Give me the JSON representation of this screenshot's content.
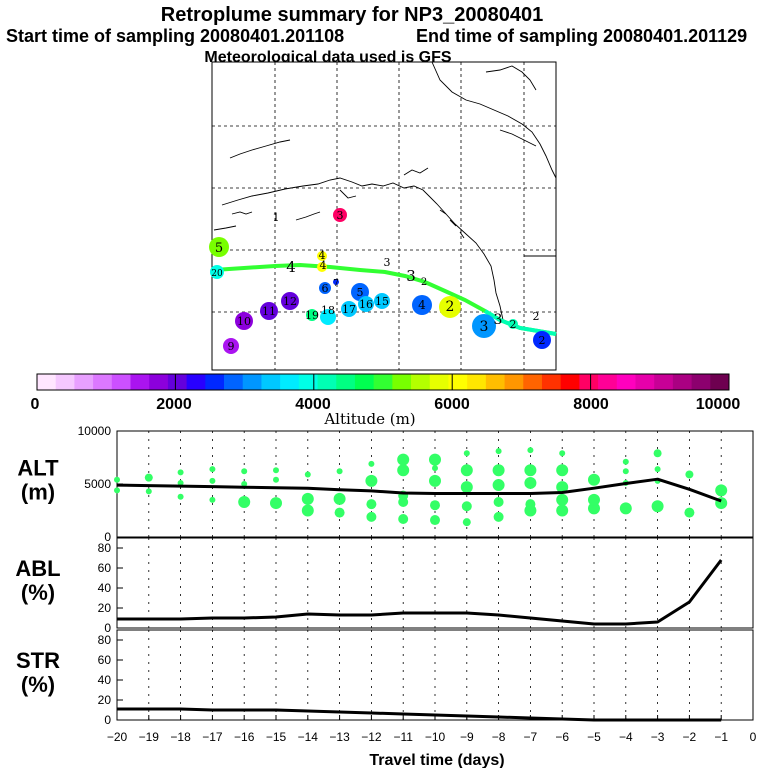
{
  "header": {
    "title": "Retroplume summary for NP3_20080401",
    "start_label": "Start time of sampling 20080401.201108",
    "end_label": "End time of sampling 20080401.201129",
    "met_label": "Meteorological data used is GFS"
  },
  "colorbar": {
    "ticks": [
      "0",
      "2000",
      "4000",
      "6000",
      "8000",
      "10000"
    ],
    "tick_values": [
      0,
      2000,
      4000,
      6000,
      8000,
      10000
    ],
    "range": [
      0,
      10000
    ],
    "label": "Altitude (m)",
    "colors": [
      "#ffe6ff",
      "#f5c8ff",
      "#e8a0ff",
      "#dc78ff",
      "#cc50ff",
      "#aa14f0",
      "#8c00dc",
      "#6400dc",
      "#2800ff",
      "#0028ff",
      "#0064ff",
      "#0096ff",
      "#00c8ff",
      "#00ebff",
      "#00ffe6",
      "#00ffb4",
      "#00ff82",
      "#00ff50",
      "#32ff32",
      "#78ff00",
      "#b4ff00",
      "#e6ff00",
      "#ffff00",
      "#ffe600",
      "#ffbe00",
      "#ff9600",
      "#ff6400",
      "#ff3200",
      "#ff0000",
      "#ff0064",
      "#ff0096",
      "#ff00be",
      "#e600aa",
      "#c80096",
      "#aa0082",
      "#8c006e",
      "#6e0050"
    ]
  },
  "chart_data": [
    {
      "type": "line",
      "panel": "ALT",
      "ylabel": "ALT\n(m)",
      "ylabel_line1": "ALT",
      "ylabel_line2": "(m)",
      "ylim": [
        0,
        10000
      ],
      "yticks": [
        "10000",
        "5000",
        "0"
      ],
      "ytick_values": [
        10000,
        5000,
        0
      ],
      "x": [
        -20,
        -19,
        -18,
        -17,
        -16,
        -15,
        -14,
        -13,
        -12,
        -11,
        -10,
        -9,
        -8,
        -7,
        -6,
        -5,
        -4,
        -3,
        -2,
        -1
      ],
      "series": [
        {
          "name": "mean altitude",
          "values": [
            4900,
            4850,
            4800,
            4750,
            4700,
            4650,
            4600,
            4450,
            4350,
            4150,
            4100,
            4100,
            4100,
            4100,
            4200,
            4600,
            5050,
            5450,
            4500,
            3400
          ]
        }
      ],
      "scatter_points": [
        {
          "x": -20,
          "y": [
            4400,
            5400
          ]
        },
        {
          "x": -19,
          "y": [
            4300,
            5600
          ]
        },
        {
          "x": -18,
          "y": [
            3800,
            5100,
            6100
          ]
        },
        {
          "x": -17,
          "y": [
            3500,
            5300,
            6400
          ]
        },
        {
          "x": -16,
          "y": [
            3300,
            5000,
            6200
          ]
        },
        {
          "x": -15,
          "y": [
            3200,
            5400,
            6300
          ]
        },
        {
          "x": -14,
          "y": [
            2500,
            3600,
            5900
          ]
        },
        {
          "x": -13,
          "y": [
            2300,
            3600,
            6200
          ]
        },
        {
          "x": -12,
          "y": [
            1900,
            3100,
            5300,
            6900
          ]
        },
        {
          "x": -11,
          "y": [
            1700,
            3300,
            3900,
            6300,
            7300
          ]
        },
        {
          "x": -10,
          "y": [
            1600,
            3000,
            5300,
            6500,
            7300
          ]
        },
        {
          "x": -9,
          "y": [
            1400,
            2900,
            4700,
            6300,
            7900
          ]
        },
        {
          "x": -8,
          "y": [
            1900,
            3300,
            4900,
            6300,
            8100
          ]
        },
        {
          "x": -7,
          "y": [
            2500,
            3100,
            5100,
            6300,
            8200
          ]
        },
        {
          "x": -6,
          "y": [
            2500,
            3500,
            4700,
            6300,
            7900
          ]
        },
        {
          "x": -5,
          "y": [
            2700,
            3500,
            5400
          ]
        },
        {
          "x": -4,
          "y": [
            2700,
            5100,
            6200,
            7100
          ]
        },
        {
          "x": -3,
          "y": [
            2900,
            5300,
            6400,
            7900
          ]
        },
        {
          "x": -2,
          "y": [
            2300,
            5900
          ]
        },
        {
          "x": -1,
          "y": [
            3200,
            4400
          ]
        }
      ]
    },
    {
      "type": "line",
      "panel": "ABL",
      "ylabel_line1": "ABL",
      "ylabel_line2": "(%)",
      "ylim": [
        0,
        90
      ],
      "yticks": [
        "80",
        "60",
        "40",
        "20",
        "0"
      ],
      "ytick_values": [
        80,
        60,
        40,
        20,
        0
      ],
      "x": [
        -20,
        -19,
        -18,
        -17,
        -16,
        -15,
        -14,
        -13,
        -12,
        -11,
        -10,
        -9,
        -8,
        -7,
        -6,
        -5,
        -4,
        -3,
        -2,
        -1
      ],
      "series": [
        {
          "name": "ABL fraction",
          "values": [
            9,
            9,
            9,
            10,
            10,
            11,
            14,
            13,
            13,
            15,
            15,
            15,
            13,
            10,
            7,
            4,
            4,
            6,
            26,
            68
          ]
        }
      ]
    },
    {
      "type": "line",
      "panel": "STR",
      "ylabel_line1": "STR",
      "ylabel_line2": "(%)",
      "ylim": [
        0,
        90
      ],
      "yticks": [
        "80",
        "60",
        "40",
        "20",
        "0"
      ],
      "ytick_values": [
        80,
        60,
        40,
        20,
        0
      ],
      "x": [
        -20,
        -19,
        -18,
        -17,
        -16,
        -15,
        -14,
        -13,
        -12,
        -11,
        -10,
        -9,
        -8,
        -7,
        -6,
        -5,
        -4,
        -3,
        -2,
        -1
      ],
      "series": [
        {
          "name": "stratospheric fraction",
          "values": [
            11,
            11,
            11,
            10,
            10,
            10,
            9,
            8,
            7,
            6,
            5,
            4,
            3,
            2,
            1,
            0,
            0,
            0,
            0,
            0
          ]
        }
      ],
      "xlabel": "Travel time (days)",
      "xticks": [
        "−20",
        "−19",
        "−18",
        "−17",
        "−16",
        "−15",
        "−14",
        "−13",
        "−12",
        "−11",
        "−10",
        "−9",
        "−8",
        "−7",
        "−6",
        "−5",
        "−4",
        "−3",
        "−2",
        "−1",
        "0"
      ],
      "xtick_values": [
        -20,
        -19,
        -18,
        -17,
        -16,
        -15,
        -14,
        -13,
        -12,
        -11,
        -10,
        -9,
        -8,
        -7,
        -6,
        -5,
        -4,
        -3,
        -2,
        -1,
        0
      ],
      "xlim": [
        -20,
        0
      ]
    }
  ],
  "map": {
    "labels": [
      {
        "text": "1",
        "color": "#ffe600"
      },
      {
        "text": "3",
        "color": "#ff0064"
      },
      {
        "text": "5",
        "color": "#78ff00"
      },
      {
        "text": "4",
        "color": "#ffff00"
      },
      {
        "text": "3",
        "color": "#ffff00"
      },
      {
        "text": "6",
        "color": "#0064ff"
      },
      {
        "text": "7",
        "color": "#0028ff"
      },
      {
        "text": "5",
        "color": "#0064ff"
      },
      {
        "text": "12",
        "color": "#6400dc"
      },
      {
        "text": "11",
        "color": "#6400dc"
      },
      {
        "text": "10",
        "color": "#8c00dc"
      },
      {
        "text": "9",
        "color": "#aa14f0"
      },
      {
        "text": "19",
        "color": "#00ff82"
      },
      {
        "text": "18",
        "color": "#00ebff"
      },
      {
        "text": "17",
        "color": "#00c8ff"
      },
      {
        "text": "16",
        "color": "#00c8ff"
      },
      {
        "text": "15",
        "color": "#00c8ff"
      },
      {
        "text": "14",
        "color": "#00c8ff"
      },
      {
        "text": "4",
        "color": "#0064ff"
      },
      {
        "text": "2",
        "color": "#e6ff00"
      },
      {
        "text": "3",
        "color": "#0096ff"
      },
      {
        "text": "2",
        "color": "#00ffb4"
      },
      {
        "text": "2",
        "color": "#0028ff"
      },
      {
        "text": "20",
        "color": "#00ffe6"
      }
    ],
    "track_labels": [
      "4",
      "3",
      "2",
      "4",
      "3",
      "2"
    ]
  }
}
